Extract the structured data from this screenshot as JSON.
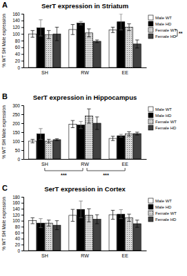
{
  "chart_data": [
    {
      "type": "bar",
      "panel": "A",
      "title": "SerT expression in Striatum",
      "ylabel": "% WT SH Male expression",
      "categories": [
        "SH",
        "RW",
        "EE"
      ],
      "series": [
        {
          "name": "Male WT",
          "color": "#ffffff",
          "values": [
            100,
            113,
            112
          ],
          "errors": [
            10,
            15,
            8
          ]
        },
        {
          "name": "Male HD",
          "color": "#000000",
          "values": [
            118,
            132,
            136
          ],
          "errors": [
            24,
            5,
            24
          ]
        },
        {
          "name": "Female WT",
          "color": "#d9d9d9",
          "values": [
            98,
            103,
            120
          ],
          "errors": [
            12,
            12,
            10
          ]
        },
        {
          "name": "Female HD",
          "color": "#404040",
          "values": [
            100,
            78,
            70
          ],
          "errors": [
            20,
            4,
            12
          ]
        }
      ],
      "ylim": [
        0,
        160
      ],
      "yticks": [
        0,
        20,
        40,
        60,
        80,
        100,
        120,
        140,
        160
      ],
      "legend": "right",
      "annotations": [
        {
          "text": "**",
          "series": [
            2,
            3
          ]
        }
      ]
    },
    {
      "type": "bar",
      "panel": "B",
      "title": "SerT expression in Hippocampus",
      "ylabel": "% WT SH Male expression",
      "categories": [
        "SH",
        "RW",
        "EE"
      ],
      "series": [
        {
          "name": "Male WT",
          "color": "#ffffff",
          "values": [
            100,
            195,
            115
          ],
          "errors": [
            10,
            20,
            12
          ]
        },
        {
          "name": "Male HD",
          "color": "#000000",
          "values": [
            140,
            190,
            130
          ],
          "errors": [
            30,
            20,
            8
          ]
        },
        {
          "name": "Female WT",
          "color": "#d9d9d9",
          "values": [
            100,
            240,
            140
          ],
          "errors": [
            10,
            40,
            12
          ]
        },
        {
          "name": "Female HD",
          "color": "#404040",
          "values": [
            108,
            200,
            142
          ],
          "errors": [
            5,
            35,
            8
          ]
        }
      ],
      "ylim": [
        0,
        300
      ],
      "yticks": [
        0,
        50,
        100,
        150,
        200,
        250,
        300
      ],
      "legend": "right",
      "annotations": [
        {
          "text": "***",
          "categories": [
            0,
            1
          ]
        },
        {
          "text": "***",
          "categories": [
            1,
            2
          ]
        }
      ]
    },
    {
      "type": "bar",
      "panel": "C",
      "title": "SerT expression in Cortex",
      "ylabel": "% WT SH Male expression",
      "categories": [
        "SH",
        "RW",
        "EE"
      ],
      "series": [
        {
          "name": "Male WT",
          "color": "#ffffff",
          "values": [
            100,
            118,
            120
          ],
          "errors": [
            10,
            20,
            15
          ]
        },
        {
          "name": "Male HD",
          "color": "#000000",
          "values": [
            92,
            138,
            122
          ],
          "errors": [
            15,
            28,
            15
          ]
        },
        {
          "name": "Female WT",
          "color": "#d9d9d9",
          "values": [
            92,
            118,
            110
          ],
          "errors": [
            10,
            22,
            12
          ]
        },
        {
          "name": "Female HD",
          "color": "#404040",
          "values": [
            85,
            105,
            90
          ],
          "errors": [
            15,
            15,
            12
          ]
        }
      ],
      "ylim": [
        0,
        180
      ],
      "yticks": [
        0,
        20,
        40,
        60,
        80,
        100,
        120,
        140,
        160,
        180
      ],
      "legend": "right"
    }
  ]
}
